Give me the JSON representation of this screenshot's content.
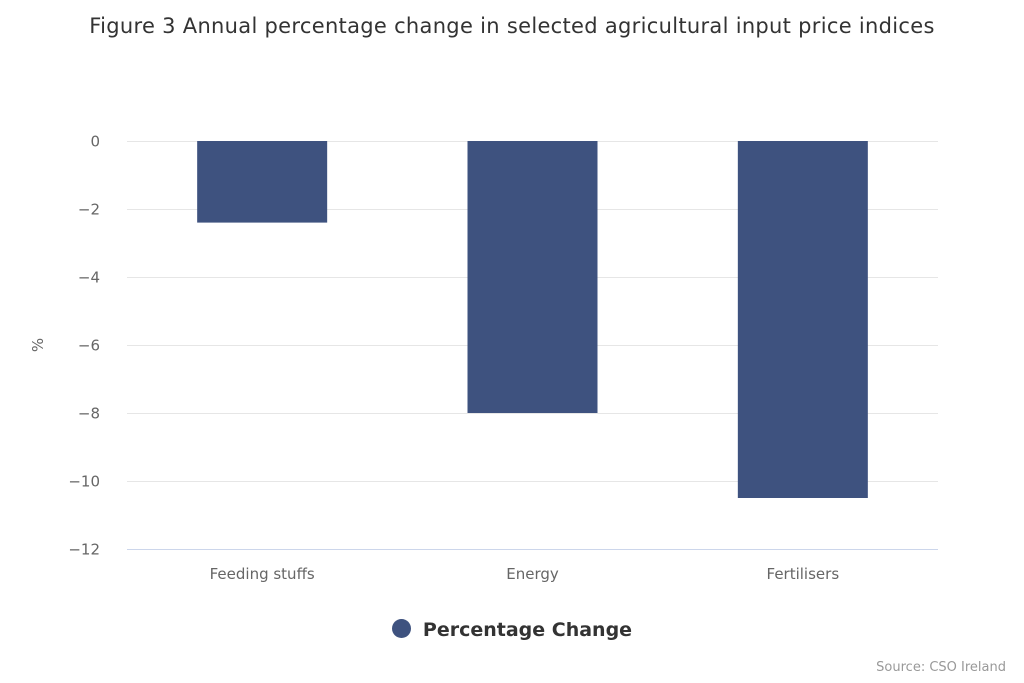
{
  "chart_data": {
    "type": "bar",
    "title": "Figure 3 Annual percentage change in selected agricultural input price indices",
    "categories": [
      "Feeding stuffs",
      "Energy",
      "Fertilisers"
    ],
    "series": [
      {
        "name": "Percentage Change",
        "values": [
          -2.4,
          -8.0,
          -10.5
        ],
        "color": "#3e527f"
      }
    ],
    "xlabel": "",
    "ylabel": "%",
    "ylim": [
      -12,
      0
    ],
    "yticks": [
      0,
      -2,
      -4,
      -6,
      -8,
      -10,
      -12
    ],
    "ytick_labels": [
      "0",
      "−2",
      "−4",
      "−6",
      "−8",
      "−10",
      "−12"
    ],
    "grid": true,
    "legend": "bottom-center",
    "source": "Source: CSO Ireland"
  }
}
